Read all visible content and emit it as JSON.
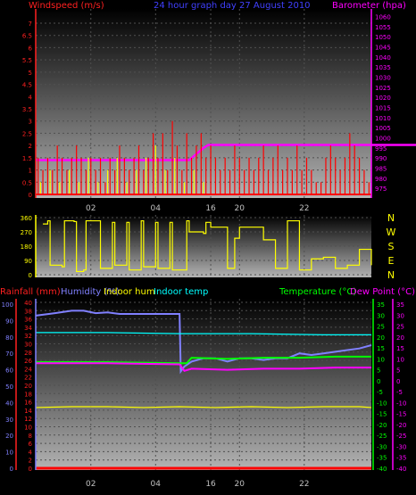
{
  "chart_data": [
    {
      "type": "line",
      "panel": "wind-baro",
      "title": "24 hour graph day  27 August 2010",
      "legend": {
        "left": "Windspeed (m/s)",
        "right": "Barometer (hpa)"
      },
      "x_ticks": [
        "02",
        "04",
        "16",
        "20",
        "22"
      ],
      "y_left": {
        "ticks": [
          "0",
          "0.5",
          "1",
          "1.5",
          "2",
          "2.5",
          "3",
          "3.5",
          "4",
          "4.5",
          "5",
          "5.5",
          "6",
          "6.5",
          "7"
        ],
        "ylim": [
          0,
          7
        ]
      },
      "y_right": {
        "ticks": [
          "975",
          "980",
          "985",
          "990",
          "995",
          "1000",
          "1005",
          "1010",
          "1015",
          "1020",
          "1025",
          "1030",
          "1035",
          "1040",
          "1045",
          "1050",
          "1055",
          "1060"
        ],
        "ylim": [
          972,
          1062
        ]
      },
      "series": [
        {
          "name": "Barometer (hpa)",
          "color": "#ff00ff",
          "axis": "right",
          "x": [
            0,
            6.4,
            6.6,
            7.0,
            7.2,
            24
          ],
          "values": [
            989,
            989,
            991,
            995,
            996.5,
            996.5
          ]
        },
        {
          "name": "Windspeed (m/s)",
          "color": "#ff0000",
          "axis": "left",
          "style": "spikes",
          "x": [
            0.1,
            0.3,
            0.5,
            0.7,
            0.9,
            1.1,
            1.3,
            1.5,
            1.7,
            1.9,
            2.1,
            2.3,
            2.5,
            2.7,
            2.9,
            3.1,
            3.3,
            3.5,
            3.7,
            3.9,
            4.1,
            4.3,
            4.5,
            4.7,
            4.9,
            5.1,
            5.3,
            5.5,
            5.7,
            5.9,
            6.1,
            6.3,
            6.5,
            6.7,
            6.9,
            7.1,
            7.3,
            7.5,
            7.7,
            7.9,
            8.1,
            8.3,
            8.5,
            8.7,
            8.9,
            9.1,
            9.3,
            9.5,
            9.7,
            9.9,
            10.1,
            10.3,
            10.5,
            10.7,
            10.9,
            11.1,
            11.3,
            11.5,
            11.7,
            11.9,
            12.1,
            12.3,
            12.5,
            12.7,
            12.9,
            13.1,
            13.3,
            13.5,
            13.7,
            13.9
          ],
          "values": [
            1.5,
            1,
            1.5,
            1,
            2,
            1.5,
            1,
            1.5,
            2,
            1.5,
            1,
            1.5,
            1,
            1.5,
            0.5,
            1.5,
            1,
            2,
            1.5,
            1,
            1.5,
            2,
            1,
            1.5,
            2.5,
            1.5,
            2.5,
            1,
            3,
            2,
            1,
            2.5,
            1.5,
            2,
            2.5,
            1.5,
            2,
            1.5,
            1,
            1.5,
            1,
            2,
            1.5,
            1,
            1.5,
            1,
            1.5,
            2,
            1,
            1.5,
            2,
            1,
            1.5,
            1,
            2,
            1,
            1.5,
            1,
            0.5,
            0.5,
            1.5,
            2,
            1.5,
            1,
            1.5,
            2.5,
            2,
            1.5,
            1,
            0.5
          ]
        },
        {
          "name": "Wind gust (yellow)",
          "color": "#ffff00",
          "axis": "left",
          "style": "spikes",
          "x": [
            0.2,
            0.6,
            1.0,
            1.4,
            1.8,
            2.2,
            2.6,
            3.0,
            3.4,
            3.8,
            4.2,
            4.6,
            5.0,
            5.4,
            5.8,
            6.2,
            6.6,
            7.0
          ],
          "values": [
            0.5,
            1,
            0.5,
            1,
            0.5,
            1.5,
            0.5,
            1,
            1.5,
            0.5,
            1,
            1.5,
            2,
            1,
            1.5,
            0.5,
            1,
            0.5
          ]
        }
      ]
    },
    {
      "type": "line",
      "panel": "wind-direction",
      "y_left": {
        "ticks": [
          "0",
          "90",
          "180",
          "270",
          "360"
        ],
        "ylim": [
          0,
          360
        ]
      },
      "y_right": {
        "ticks": [
          "N",
          "W",
          "S",
          "E",
          "N"
        ]
      },
      "series": [
        {
          "name": "Wind direction",
          "color": "#ffff00",
          "x": [
            0.3,
            0.5,
            0.6,
            1.1,
            1.2,
            1.6,
            1.7,
            2.0,
            2.1,
            2.6,
            2.7,
            3.2,
            3.3,
            3.8,
            3.9,
            4.4,
            4.5,
            5.0,
            5.1,
            5.6,
            5.7,
            6.3,
            6.4,
            7.0,
            7.1,
            7.3,
            7.5,
            8.0,
            8.3,
            8.5,
            9.0,
            9.5,
            10.0,
            10.3,
            10.5,
            11.0,
            11.5,
            12.0,
            12.5,
            13.0,
            13.5,
            14.0
          ],
          "values": [
            320,
            340,
            60,
            50,
            340,
            335,
            20,
            30,
            340,
            340,
            40,
            330,
            60,
            330,
            30,
            340,
            50,
            330,
            40,
            330,
            30,
            340,
            270,
            260,
            330,
            300,
            300,
            40,
            230,
            300,
            300,
            220,
            40,
            40,
            340,
            30,
            100,
            110,
            40,
            60,
            160,
            60
          ]
        }
      ]
    },
    {
      "type": "line",
      "panel": "temp-hum",
      "legend": {
        "rain": "Rainfall (mm)",
        "humidity": "Humidity (%)",
        "indoor_hum": "Indoor hum",
        "indoor_temp": "Indoor temp",
        "temperature": "Temperature (°C)",
        "dew_point": "Dew Point (°C)"
      },
      "y_left": {
        "ticks": [
          "0",
          "10",
          "20",
          "30",
          "40",
          "50",
          "60",
          "70",
          "80",
          "90",
          "100"
        ],
        "ylim": [
          0,
          100
        ]
      },
      "y_rain": {
        "ticks": [
          "0",
          "2",
          "4",
          "6",
          "8",
          "10",
          "12",
          "14",
          "16",
          "18",
          "20",
          "22",
          "24",
          "26",
          "28",
          "30",
          "32",
          "34",
          "36",
          "38",
          "40"
        ],
        "ylim": [
          0,
          40
        ]
      },
      "y_right": {
        "ticks": [
          "-40",
          "-35",
          "-30",
          "-25",
          "-20",
          "-15",
          "-10",
          "-5",
          "0",
          "5",
          "10",
          "15",
          "20",
          "25",
          "30",
          "35"
        ],
        "ylim": [
          -40,
          35
        ]
      },
      "series": [
        {
          "name": "Humidity (%)",
          "color": "#8080ff",
          "axis": "left",
          "x": [
            0,
            0.8,
            1.5,
            2.0,
            2.5,
            3.0,
            3.5,
            4.0,
            4.5,
            5.0,
            5.5,
            6.0,
            6.05,
            6.2,
            6.5,
            7.0,
            7.5,
            8.0,
            8.5,
            9.0,
            9.5,
            10.0,
            10.5,
            11.0,
            11.5,
            12.0,
            12.5,
            13.0,
            13.5,
            14.0
          ],
          "values": [
            93,
            94.5,
            96,
            96,
            94.5,
            95,
            94,
            94,
            94,
            94,
            94,
            94,
            59,
            62,
            65,
            67,
            67,
            65,
            67,
            67,
            66,
            67,
            67,
            70,
            69,
            70,
            71,
            72,
            73,
            75
          ]
        },
        {
          "name": "Indoor hum",
          "color": "#ffff00",
          "axis": "left",
          "x": [
            0,
            1.5,
            3,
            4.5,
            6,
            7.5,
            9,
            10.5,
            12,
            13.5,
            14
          ],
          "values": [
            37,
            37.5,
            37.5,
            37,
            37.5,
            37,
            37.5,
            37,
            37.5,
            37.5,
            37
          ]
        },
        {
          "name": "Indoor temp",
          "color": "#00ffff",
          "axis": "right",
          "x": [
            0,
            3,
            6,
            9,
            12,
            14
          ],
          "values": [
            22,
            22,
            21.5,
            21.5,
            21,
            21
          ]
        },
        {
          "name": "Temperature (°C)",
          "color": "#00ff00",
          "axis": "right",
          "x": [
            0,
            3,
            6,
            6.3,
            6.5,
            8.0,
            9.5,
            11,
            12.5,
            14
          ],
          "values": [
            8.5,
            8.5,
            8.0,
            8.0,
            10.5,
            10.0,
            10.5,
            10.5,
            11,
            11
          ]
        },
        {
          "name": "Dew Point (°C)",
          "color": "#ff00ff",
          "axis": "right",
          "x": [
            0,
            3,
            6,
            6.2,
            6.5,
            8.0,
            9.5,
            11,
            12.5,
            14
          ],
          "values": [
            8,
            8,
            7.5,
            4.5,
            5.5,
            5,
            5.5,
            5.5,
            6,
            6
          ]
        },
        {
          "name": "Rainfall (mm)",
          "color": "#ff0000",
          "axis": "rain",
          "x": [
            0,
            14
          ],
          "values": [
            0,
            0
          ]
        }
      ]
    }
  ]
}
